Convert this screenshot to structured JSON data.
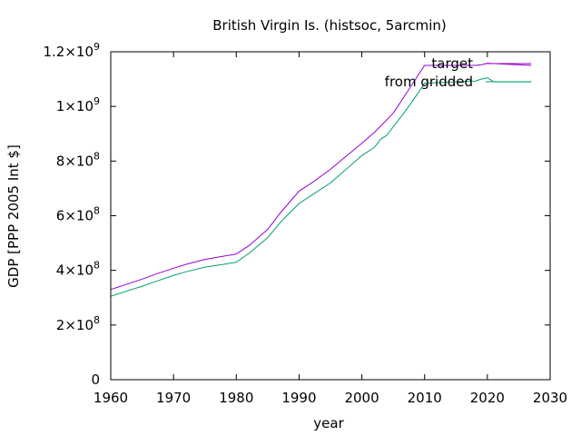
{
  "chart_data": {
    "type": "line",
    "title": "British Virgin Is. (histsoc, 5arcmin)",
    "xlabel": "year",
    "ylabel": "GDP [PPP 2005 Int $]",
    "xlim": [
      1960,
      2030
    ],
    "ylim": [
      0,
      1200000000
    ],
    "x_ticks": [
      "1960",
      "1970",
      "1980",
      "1990",
      "2000",
      "2010",
      "2020",
      "2030"
    ],
    "y_ticks": [
      {
        "value": 0,
        "mant": "0",
        "exp": ""
      },
      {
        "value": 200000000,
        "mant": "2×10",
        "exp": "8"
      },
      {
        "value": 400000000,
        "mant": "4×10",
        "exp": "8"
      },
      {
        "value": 600000000,
        "mant": "6×10",
        "exp": "8"
      },
      {
        "value": 800000000,
        "mant": "8×10",
        "exp": "8"
      },
      {
        "value": 1000000000,
        "mant": "1×10",
        "exp": "9"
      },
      {
        "value": 1200000000,
        "mant": "1.2×10",
        "exp": "9"
      }
    ],
    "grid": false,
    "legend_position": "top-right",
    "series": [
      {
        "name": "target",
        "color": "#9400d3",
        "points": [
          [
            1960,
            330000000
          ],
          [
            1962,
            345000000
          ],
          [
            1965,
            368000000
          ],
          [
            1967,
            385000000
          ],
          [
            1970,
            408000000
          ],
          [
            1972,
            422000000
          ],
          [
            1975,
            440000000
          ],
          [
            1978,
            452000000
          ],
          [
            1980,
            460000000
          ],
          [
            1982,
            490000000
          ],
          [
            1985,
            550000000
          ],
          [
            1987,
            610000000
          ],
          [
            1990,
            690000000
          ],
          [
            1992,
            720000000
          ],
          [
            1995,
            770000000
          ],
          [
            1997,
            808000000
          ],
          [
            2000,
            865000000
          ],
          [
            2002,
            905000000
          ],
          [
            2005,
            975000000
          ],
          [
            2007,
            1045000000
          ],
          [
            2010,
            1150000000
          ],
          [
            2015,
            1150000000
          ],
          [
            2018,
            1150000000
          ],
          [
            2019,
            1152000000
          ],
          [
            2020,
            1158000000
          ],
          [
            2027,
            1150000000
          ]
        ]
      },
      {
        "name": "from gridded",
        "color": "#009e73",
        "points": [
          [
            1960,
            305000000
          ],
          [
            1962,
            320000000
          ],
          [
            1965,
            342000000
          ],
          [
            1967,
            358000000
          ],
          [
            1970,
            382000000
          ],
          [
            1972,
            395000000
          ],
          [
            1975,
            412000000
          ],
          [
            1978,
            422000000
          ],
          [
            1980,
            430000000
          ],
          [
            1982,
            462000000
          ],
          [
            1985,
            520000000
          ],
          [
            1987,
            575000000
          ],
          [
            1990,
            645000000
          ],
          [
            1992,
            675000000
          ],
          [
            1995,
            720000000
          ],
          [
            1997,
            760000000
          ],
          [
            2000,
            820000000
          ],
          [
            2002,
            850000000
          ],
          [
            2003,
            880000000
          ],
          [
            2004,
            895000000
          ],
          [
            2007,
            985000000
          ],
          [
            2009,
            1050000000
          ],
          [
            2010,
            1085000000
          ],
          [
            2015,
            1090000000
          ],
          [
            2018,
            1092000000
          ],
          [
            2019,
            1100000000
          ],
          [
            2020,
            1105000000
          ],
          [
            2021,
            1090000000
          ],
          [
            2027,
            1090000000
          ]
        ]
      }
    ]
  }
}
